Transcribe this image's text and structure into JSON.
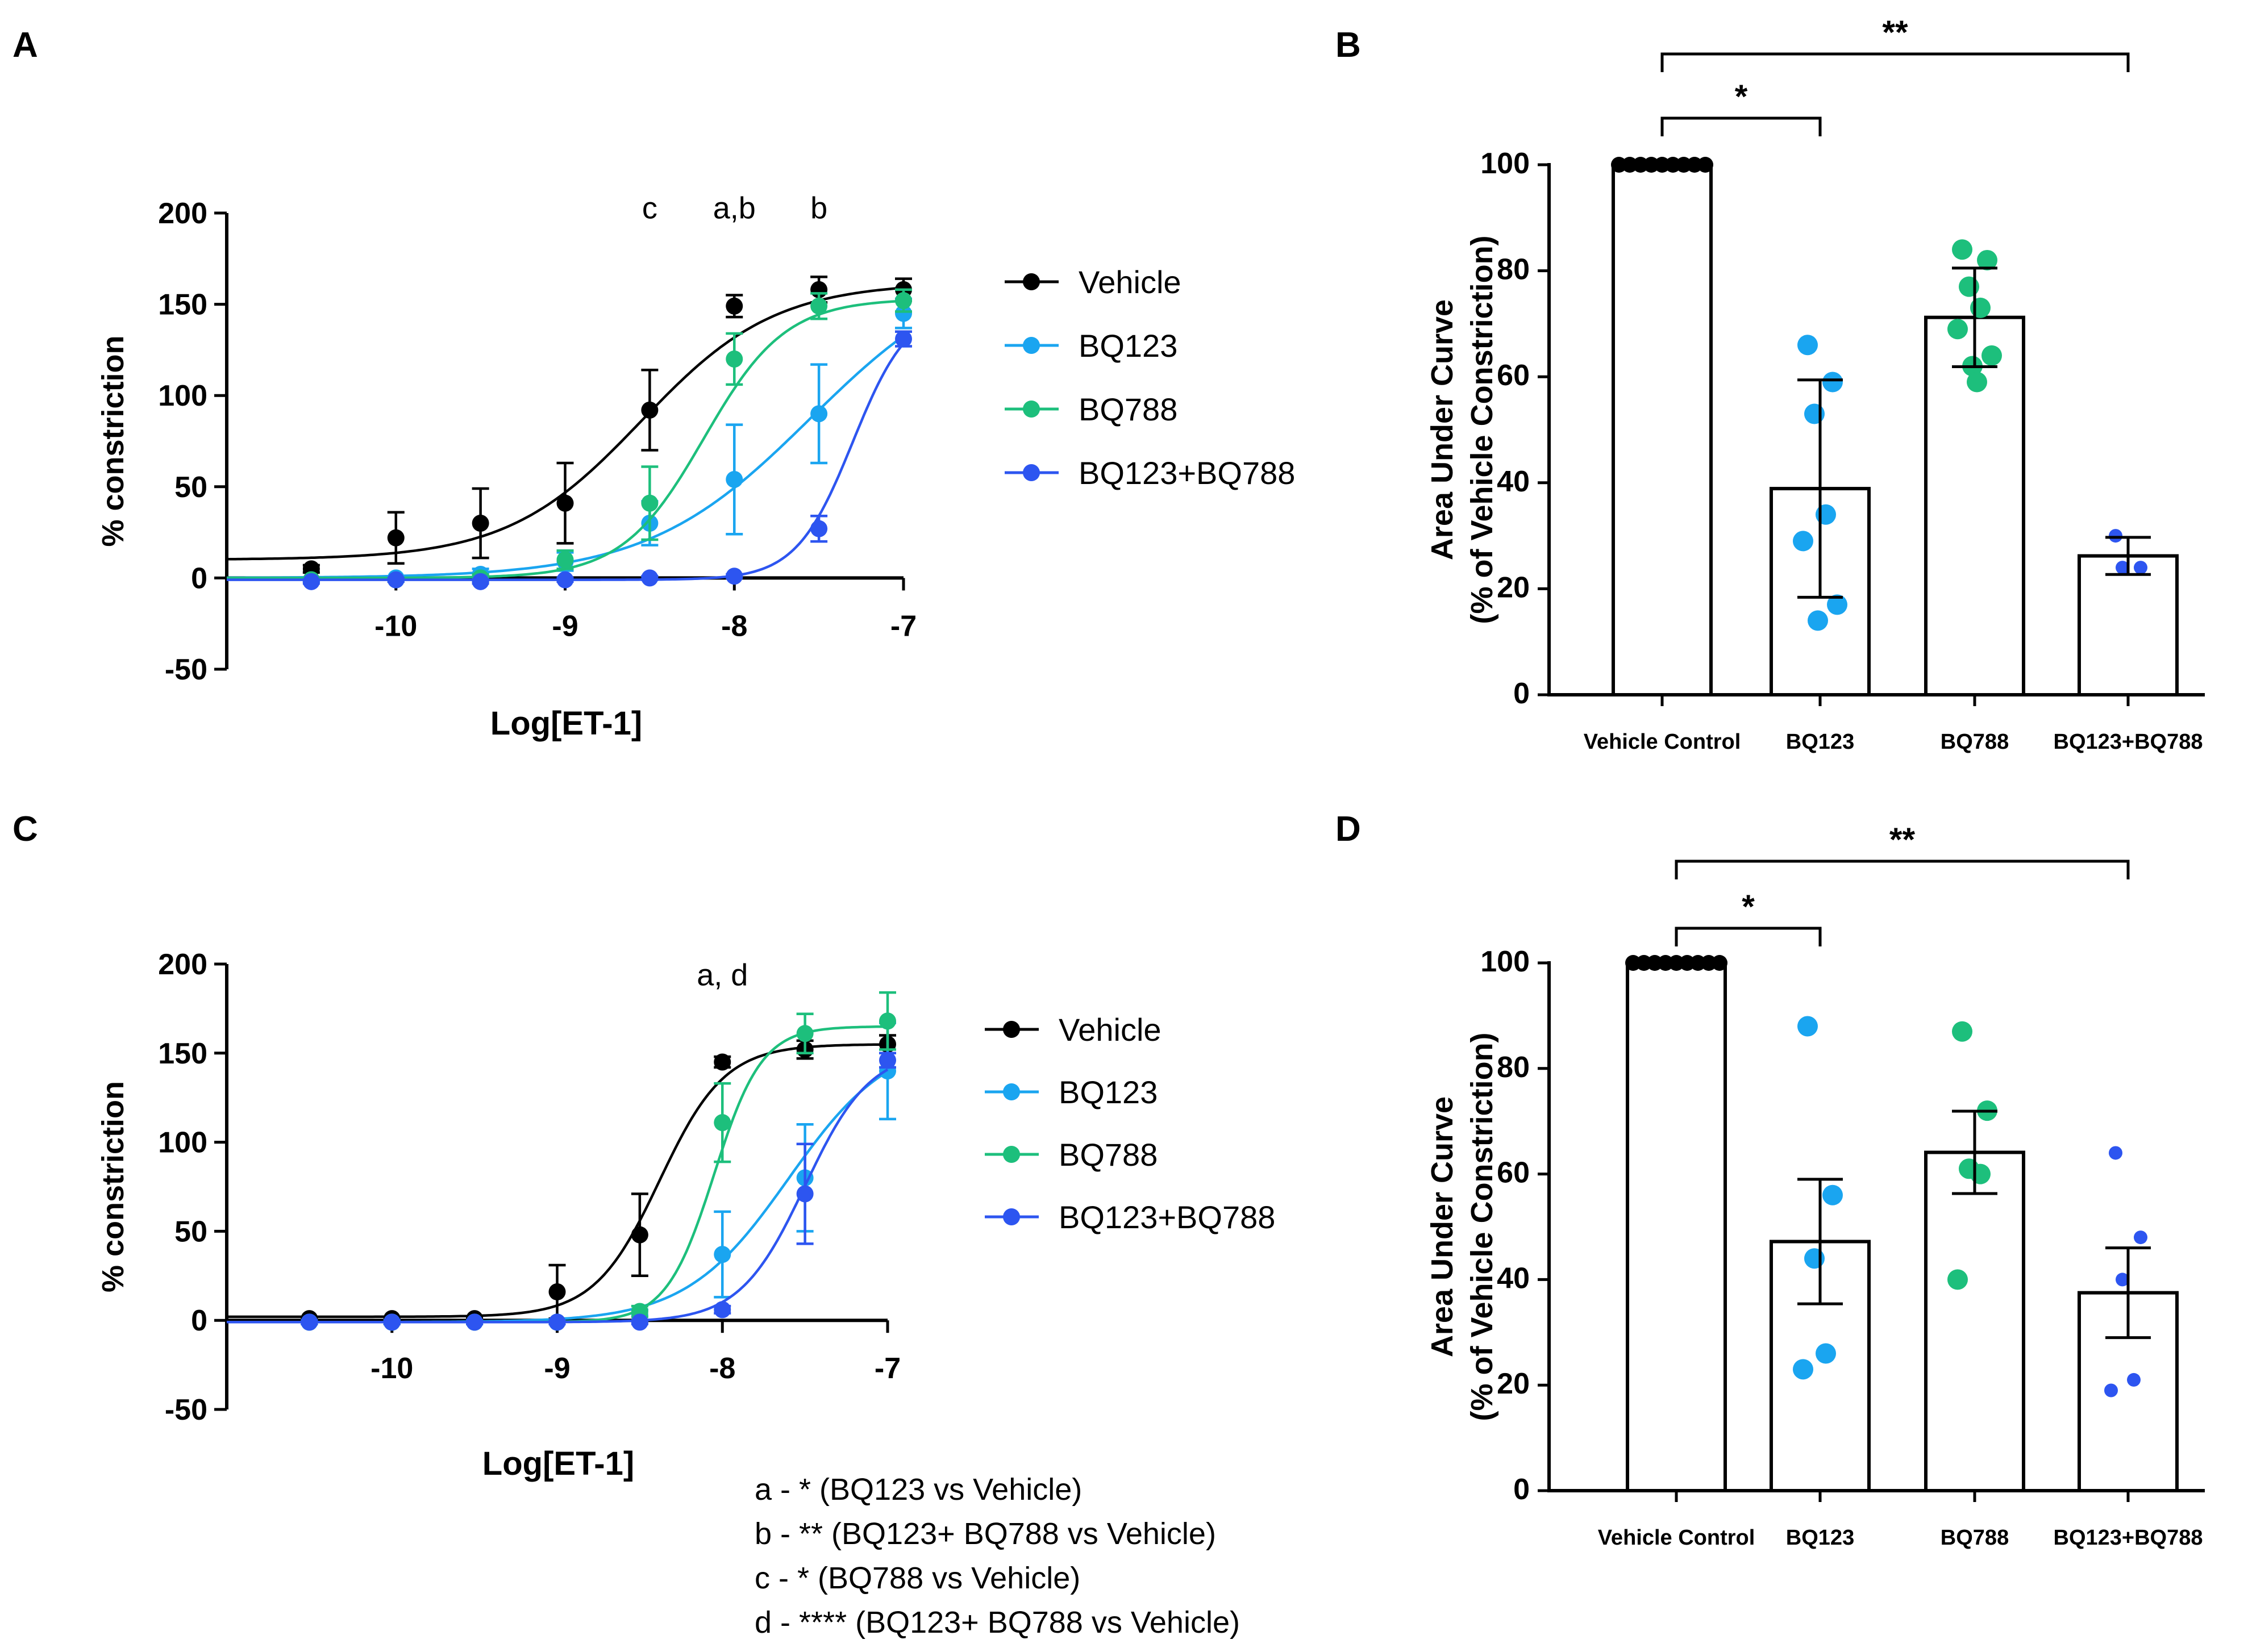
{
  "panel_labels": {
    "a": "A",
    "b": "B",
    "c": "C",
    "d": "D"
  },
  "footnotes": [
    "a - * (BQ123 vs Vehicle)",
    "b - ** (BQ123+ BQ788 vs Vehicle)",
    "c - * (BQ788 vs Vehicle)",
    "d - **** (BQ123+ BQ788 vs Vehicle)"
  ],
  "chart_data": [
    {
      "panel": "A",
      "type": "line",
      "xlabel": "Log[ET-1]",
      "ylabel": "% constriction",
      "xlim": [
        -11.0,
        -7.0
      ],
      "ylim": [
        -50,
        200
      ],
      "xticks": [
        -10,
        -9,
        -8,
        -7
      ],
      "xtick_labels": [
        "-10",
        "-9",
        "-8",
        "-7"
      ],
      "yticks": [
        -50,
        0,
        50,
        100,
        150,
        200
      ],
      "ytick_labels": [
        "-50",
        "0",
        "50",
        "100",
        "150",
        "200"
      ],
      "x": [
        -10.5,
        -10.0,
        -9.5,
        -9.0,
        -8.5,
        -8.0,
        -7.5,
        -7.0
      ],
      "annotations": [
        {
          "text": "c",
          "x": -8.5,
          "y": 197
        },
        {
          "text": "a,b",
          "x": -8.0,
          "y": 197
        },
        {
          "text": "b",
          "x": -7.5,
          "y": 197
        }
      ],
      "series": [
        {
          "name": "Vehicle",
          "color": "#000000",
          "values": [
            5,
            22,
            30,
            41,
            92,
            149,
            158,
            158
          ],
          "errors": [
            2,
            14,
            19,
            22,
            22,
            6,
            7,
            6
          ],
          "fit": {
            "bottom": 10,
            "top": 162,
            "ec50": -8.55,
            "hill": 1.1
          }
        },
        {
          "name": "BQ123",
          "color": "#1aa5f0",
          "values": [
            -1,
            0,
            2,
            9,
            30,
            54,
            90,
            145
          ],
          "errors": [
            1,
            1,
            3,
            5,
            12,
            30,
            27,
            8
          ],
          "fit": {
            "bottom": 0,
            "top": 175,
            "ec50": -7.55,
            "hill": 0.9
          }
        },
        {
          "name": "BQ788",
          "color": "#1dbf7c",
          "values": [
            -1,
            -1,
            0,
            10,
            41,
            120,
            149,
            152
          ],
          "errors": [
            1,
            1,
            2,
            5,
            20,
            14,
            7,
            6
          ],
          "fit": {
            "bottom": 0,
            "top": 153,
            "ec50": -8.18,
            "hill": 1.8
          }
        },
        {
          "name": "BQ123+BQ788",
          "color": "#2d55f0",
          "values": [
            -2,
            -1,
            -2,
            -1,
            0,
            1,
            27,
            131
          ],
          "errors": [
            1,
            1,
            1,
            1,
            1,
            1,
            7,
            4
          ],
          "fit": {
            "bottom": -1,
            "top": 150,
            "ec50": -7.3,
            "hill": 2.6
          }
        }
      ]
    },
    {
      "panel": "B",
      "type": "bar",
      "ylabel": "Area Under Curve",
      "ylabel2": "(% of Vehicle Constriction)",
      "ylim": [
        0,
        100
      ],
      "yticks": [
        0,
        20,
        40,
        60,
        80,
        100
      ],
      "ytick_labels": [
        "0",
        "20",
        "40",
        "60",
        "80",
        "100"
      ],
      "categories": [
        "Vehicle Control",
        "BQ123",
        "BQ788",
        "BQ123+BQ788"
      ],
      "values": [
        100,
        38.9,
        71.2,
        26.2
      ],
      "errors": [
        0,
        20.5,
        9.3,
        3.5
      ],
      "colors": [
        "#000000",
        "#1aa5f0",
        "#1dbf7c",
        "#2d55f0"
      ],
      "points": [
        [
          100,
          100,
          100,
          100,
          100,
          100,
          100,
          100,
          100
        ],
        [
          66,
          59,
          53,
          34,
          29,
          17,
          14
        ],
        [
          84,
          82,
          77,
          73,
          69,
          64,
          62,
          59
        ],
        [
          30,
          24,
          24
        ]
      ],
      "significance": [
        {
          "from": 0,
          "to": 1,
          "label": "*"
        },
        {
          "from": 0,
          "to": 3,
          "label": "**"
        }
      ]
    },
    {
      "panel": "C",
      "type": "line",
      "xlabel": "Log[ET-1]",
      "ylabel": "% constriction",
      "xlim": [
        -11.0,
        -7.0
      ],
      "ylim": [
        -50,
        200
      ],
      "xticks": [
        -10,
        -9,
        -8,
        -7
      ],
      "xtick_labels": [
        "-10",
        "-9",
        "-8",
        "-7"
      ],
      "yticks": [
        -50,
        0,
        50,
        100,
        150,
        200
      ],
      "ytick_labels": [
        "-50",
        "0",
        "50",
        "100",
        "150",
        "200"
      ],
      "x": [
        -10.5,
        -10.0,
        -9.5,
        -9.0,
        -8.5,
        -8.0,
        -7.5,
        -7.0
      ],
      "annotations": [
        {
          "text": "a, d",
          "x": -8.0,
          "y": 188
        }
      ],
      "series": [
        {
          "name": "Vehicle",
          "color": "#000000",
          "values": [
            1,
            1,
            1,
            16,
            48,
            145,
            152,
            155
          ],
          "errors": [
            1,
            1,
            1,
            15,
            23,
            3,
            5,
            5
          ],
          "fit": {
            "bottom": 2,
            "top": 155,
            "ec50": -8.38,
            "hill": 2.2
          }
        },
        {
          "name": "BQ123",
          "color": "#1aa5f0",
          "values": [
            -1,
            -1,
            -1,
            -1,
            3,
            37,
            80,
            140
          ],
          "errors": [
            1,
            1,
            1,
            1,
            3,
            24,
            30,
            27
          ],
          "fit": {
            "bottom": -1,
            "top": 160,
            "ec50": -7.6,
            "hill": 1.4
          }
        },
        {
          "name": "BQ788",
          "color": "#1dbf7c",
          "values": [
            -1,
            -1,
            -1,
            -1,
            5,
            111,
            161,
            168
          ],
          "errors": [
            1,
            1,
            1,
            1,
            3,
            22,
            11,
            16
          ],
          "fit": {
            "bottom": -1,
            "top": 165,
            "ec50": -8.05,
            "hill": 3.0
          }
        },
        {
          "name": "BQ123+BQ788",
          "color": "#2d55f0",
          "values": [
            -1,
            -1,
            -1,
            -1,
            -1,
            6,
            71,
            146
          ],
          "errors": [
            1,
            1,
            1,
            1,
            1,
            2,
            28,
            4
          ],
          "fit": {
            "bottom": -1,
            "top": 152,
            "ec50": -7.5,
            "hill": 2.2
          }
        }
      ]
    },
    {
      "panel": "D",
      "type": "bar",
      "ylabel": "Area Under Curve",
      "ylabel2": "(% of Vehicle Constriction)",
      "ylim": [
        0,
        100
      ],
      "yticks": [
        0,
        20,
        40,
        60,
        80,
        100
      ],
      "ytick_labels": [
        "0",
        "20",
        "40",
        "60",
        "80",
        "100"
      ],
      "categories": [
        "Vehicle Control",
        "BQ123",
        "BQ788",
        "BQ123+BQ788"
      ],
      "values": [
        100,
        47.2,
        64.1,
        37.5
      ],
      "errors": [
        0,
        11.8,
        7.8,
        8.5
      ],
      "colors": [
        "#000000",
        "#1aa5f0",
        "#1dbf7c",
        "#2d55f0"
      ],
      "points": [
        [
          100,
          100,
          100,
          100,
          100,
          100,
          100,
          100,
          100
        ],
        [
          88,
          56,
          44,
          26,
          23
        ],
        [
          87,
          72,
          61,
          60,
          40
        ],
        [
          64,
          48,
          40,
          21,
          19
        ]
      ],
      "significance": [
        {
          "from": 0,
          "to": 1,
          "label": "*"
        },
        {
          "from": 0,
          "to": 3,
          "label": "**"
        }
      ]
    }
  ]
}
